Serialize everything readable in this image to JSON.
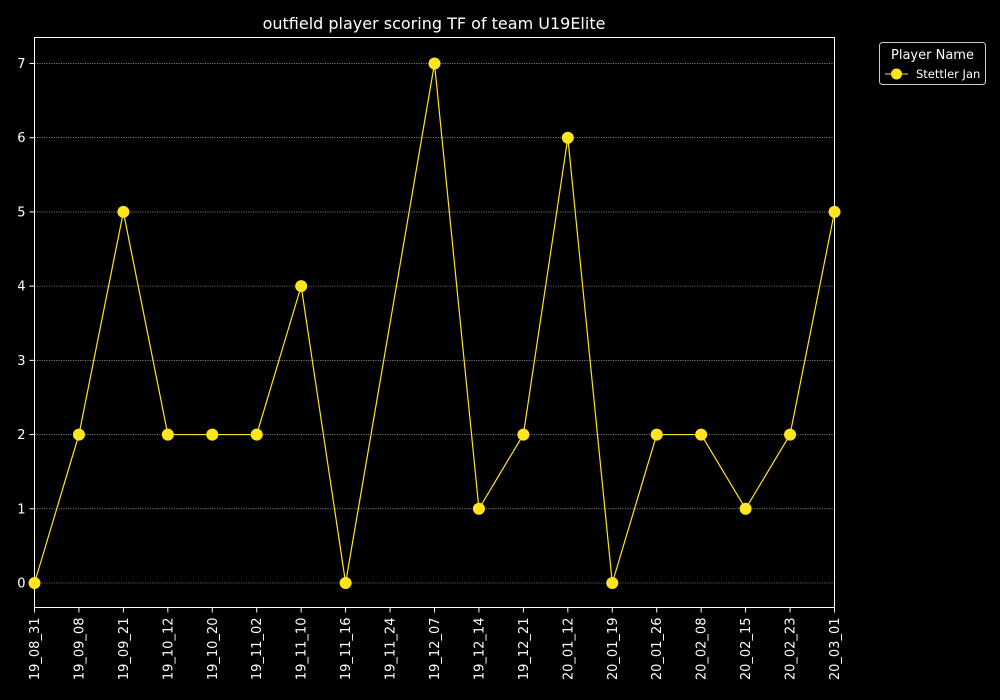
{
  "chart_data": {
    "type": "line",
    "title": "outfield player scoring TF of team U19Elite",
    "xlabel": "",
    "ylabel": "",
    "categories": [
      "19_08_31",
      "19_09_08",
      "19_09_21",
      "19_10_12",
      "19_10_20",
      "19_11_02",
      "19_11_10",
      "19_11_16",
      "19_11_24",
      "19_12_07",
      "19_12_14",
      "19_12_21",
      "20_01_12",
      "20_01_19",
      "20_01_26",
      "20_02_08",
      "20_02_15",
      "20_02_23",
      "20_03_01"
    ],
    "yticks": [
      "0",
      "1",
      "2",
      "3",
      "4",
      "5",
      "6",
      "7"
    ],
    "ylim": [
      -0.33,
      7.35
    ],
    "grid": "horizontal, dotted",
    "legend": {
      "title": "Player Name",
      "placement": "outside top-right"
    },
    "series": [
      {
        "name": "Stettler Jan",
        "color": "#ffe51f",
        "values": [
          {
            "x": "19_08_31",
            "y": 0
          },
          {
            "x": "19_09_08",
            "y": 2
          },
          {
            "x": "19_09_21",
            "y": 5
          },
          {
            "x": "19_10_12",
            "y": 2
          },
          {
            "x": "19_10_20",
            "y": 2
          },
          {
            "x": "19_11_02",
            "y": 2
          },
          {
            "x": "19_11_10",
            "y": 4
          },
          {
            "x": "19_11_16",
            "y": 0
          },
          {
            "x": "19_12_07",
            "y": 7
          },
          {
            "x": "19_12_14",
            "y": 1
          },
          {
            "x": "19_12_21",
            "y": 2
          },
          {
            "x": "20_01_12",
            "y": 6
          },
          {
            "x": "20_01_19",
            "y": 0
          },
          {
            "x": "20_01_26",
            "y": 2
          },
          {
            "x": "20_02_08",
            "y": 2
          },
          {
            "x": "20_02_15",
            "y": 1
          },
          {
            "x": "20_02_23",
            "y": 2
          },
          {
            "x": "20_03_01",
            "y": 5
          }
        ]
      }
    ]
  }
}
